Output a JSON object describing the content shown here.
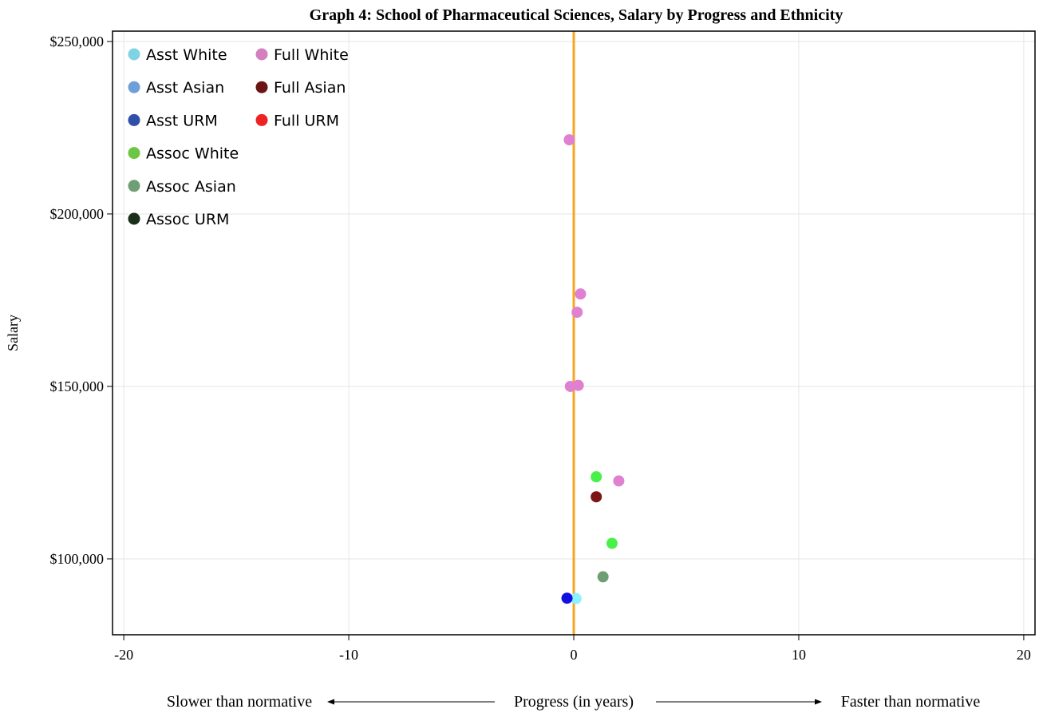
{
  "chart_data": {
    "type": "scatter",
    "title": "Graph 4: School of Pharmaceutical Sciences, Salary by Progress and Ethnicity",
    "xlabel": "Progress (in years)",
    "ylabel": "Salary",
    "x_note_left": "Slower than normative",
    "x_note_right": "Faster than normative",
    "xlim": [
      -20.5,
      20.5
    ],
    "ylim": [
      78000,
      253000
    ],
    "x_ticks": [
      -20,
      -10,
      0,
      10,
      20
    ],
    "x_tick_labels": [
      "-20",
      "-10",
      "0",
      "10",
      "20"
    ],
    "y_ticks": [
      100000,
      150000,
      200000,
      250000
    ],
    "y_tick_labels": [
      "$100,000",
      "$150,000",
      "$200,000",
      "$250,000"
    ],
    "grid": true,
    "reference_line": {
      "x": 0,
      "color": "#f5a623"
    },
    "legend_position": "top-left",
    "series": [
      {
        "name": "Asst White",
        "color": "#7fd3e3",
        "marker_color": "#8ef0ff",
        "points": [
          [
            0.1,
            88500
          ]
        ]
      },
      {
        "name": "Asst Asian",
        "color": "#6f9fd8",
        "marker_color": "#6f9fd8",
        "points": []
      },
      {
        "name": "Asst URM",
        "color": "#2f4fa8",
        "marker_color": "#1010e0",
        "points": [
          [
            -0.3,
            88600
          ]
        ]
      },
      {
        "name": "Assoc White",
        "color": "#6cc644",
        "marker_color": "#4af04a",
        "points": [
          [
            1.0,
            123800
          ],
          [
            1.7,
            104500
          ]
        ]
      },
      {
        "name": "Assoc Asian",
        "color": "#6e9e74",
        "marker_color": "#6e9e74",
        "points": [
          [
            1.3,
            94800
          ]
        ]
      },
      {
        "name": "Assoc URM",
        "color": "#1a2e1a",
        "marker_color": "#1a2e1a",
        "points": []
      },
      {
        "name": "Full White",
        "color": "#d47fc0",
        "marker_color": "#df80d0",
        "points": [
          [
            -0.2,
            221500
          ],
          [
            0.3,
            176800
          ],
          [
            0.15,
            171500
          ],
          [
            -0.15,
            150000
          ],
          [
            0.2,
            150300
          ],
          [
            2.0,
            122600
          ]
        ]
      },
      {
        "name": "Full Asian",
        "color": "#6b1414",
        "marker_color": "#7a1616",
        "points": [
          [
            1.0,
            118000
          ]
        ]
      },
      {
        "name": "Full URM",
        "color": "#ee2222",
        "marker_color": "#ee2222",
        "points": []
      }
    ]
  }
}
